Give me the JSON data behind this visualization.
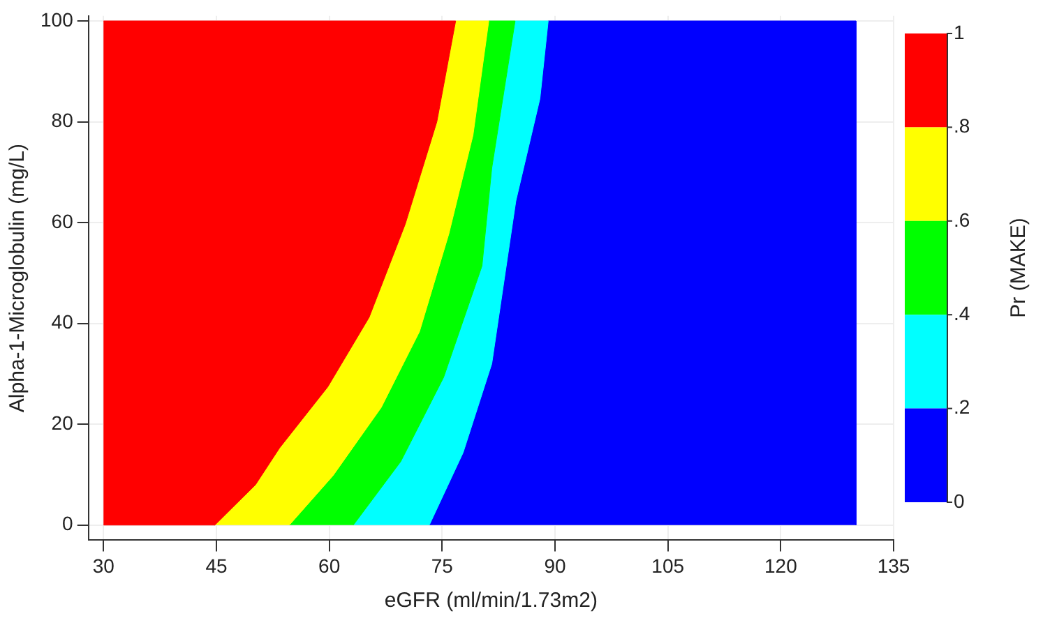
{
  "chart_data": {
    "type": "area",
    "xlabel": "eGFR (ml/min/1.73m2)",
    "ylabel": "Alpha-1-Microglobulin (mg/L)",
    "clabel": "Pr (MAKE)",
    "xlim": [
      28,
      135
    ],
    "xticks": [
      30,
      45,
      60,
      75,
      90,
      105,
      120,
      135
    ],
    "ylim": [
      -3,
      101
    ],
    "yticks": [
      0,
      20,
      40,
      60,
      80,
      100
    ],
    "clim": [
      0,
      1
    ],
    "cticks": [
      {
        "value": 0,
        "label": "0"
      },
      {
        "value": 0.2,
        "label": ".2"
      },
      {
        "value": 0.4,
        "label": ".4"
      },
      {
        "value": 0.6,
        "label": ".6"
      },
      {
        "value": 0.8,
        "label": ".8"
      },
      {
        "value": 1,
        "label": "1"
      }
    ],
    "grid": true,
    "legend": false,
    "series": [
      {
        "color": "#ff0000",
        "x": [
          30,
          44.8,
          50.2,
          53.4,
          59.8,
          65.3,
          70.1,
          74.3,
          76.8,
          30
        ],
        "values": [
          0,
          0,
          8,
          15.3,
          27.4,
          41.2,
          59.7,
          80,
          100,
          100
        ]
      },
      {
        "color": "#ffff00",
        "x": [
          44.8,
          50.2,
          53.4,
          59.8,
          65.3,
          70.1,
          74.3,
          76.8,
          81.2,
          79.1,
          75.9,
          72,
          66.9,
          60.5,
          54.7
        ],
        "values": [
          0,
          8,
          15.3,
          27.4,
          41.2,
          59.7,
          80,
          100,
          100,
          77.3,
          57.8,
          38.4,
          23.3,
          9.8,
          0
        ]
      },
      {
        "color": "#00ff00",
        "x": [
          54.7,
          60.5,
          66.9,
          72,
          75.9,
          79.1,
          81.2,
          84.7,
          81.6,
          80.3,
          75.2,
          69.5,
          63.2
        ],
        "values": [
          0,
          9.8,
          23.3,
          38.4,
          57.8,
          77.3,
          100,
          100,
          70.8,
          51.4,
          29.3,
          12.6,
          0
        ]
      },
      {
        "color": "#00ffff",
        "x": [
          63.2,
          69.5,
          75.2,
          80.3,
          81.6,
          84.7,
          89.1,
          88,
          84.8,
          81.6,
          77.8,
          73.3
        ],
        "values": [
          0,
          12.6,
          29.3,
          51.4,
          70.8,
          100,
          100,
          84.6,
          64.3,
          32,
          14.4,
          0
        ]
      },
      {
        "color": "#0000ff",
        "x": [
          73.3,
          77.8,
          81.6,
          84.8,
          88,
          89.1,
          130,
          130
        ],
        "values": [
          0,
          14.4,
          32,
          64.3,
          84.6,
          100,
          100,
          0
        ]
      }
    ]
  }
}
